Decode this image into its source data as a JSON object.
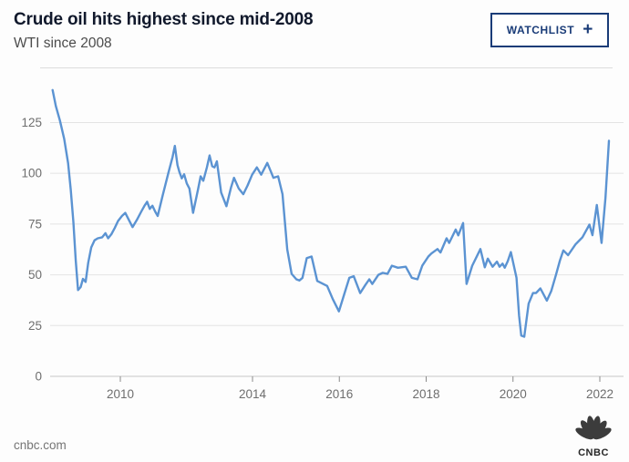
{
  "header": {
    "title": "Crude oil hits highest since mid-2008",
    "subtitle": "WTI since 2008",
    "watchlist_button": {
      "label": "WATCHLIST",
      "icon": "plus",
      "icon_glyph": "+"
    }
  },
  "chart_data": {
    "type": "line",
    "title": "Crude oil hits highest since mid-2008",
    "subtitle": "WTI since 2008",
    "xlabel": "",
    "ylabel": "",
    "xlim": [
      2007.95,
      2022.3
    ],
    "ylim": [
      0,
      145
    ],
    "grid": true,
    "legend": "none",
    "x_ticks": [
      2010,
      2014,
      2016,
      2018,
      2020,
      2022
    ],
    "y_ticks": [
      0,
      25,
      50,
      75,
      100,
      125
    ],
    "line_color": "#5b93d2",
    "grid_color": "#e4e4e4",
    "axis_color": "#c6c6c6",
    "tick_color": "#8a8a8a",
    "tick_label_color": "#6e6e6e",
    "series": [
      {
        "name": "WTI",
        "points": [
          [
            2007.95,
            141
          ],
          [
            2008.05,
            133
          ],
          [
            2008.17,
            126
          ],
          [
            2008.3,
            117
          ],
          [
            2008.42,
            105
          ],
          [
            2008.5,
            92
          ],
          [
            2008.58,
            76
          ],
          [
            2008.65,
            57
          ],
          [
            2008.72,
            42.5
          ],
          [
            2008.8,
            44
          ],
          [
            2008.87,
            48
          ],
          [
            2008.95,
            46.5
          ],
          [
            2009.03,
            56
          ],
          [
            2009.12,
            63.5
          ],
          [
            2009.22,
            67
          ],
          [
            2009.32,
            68
          ],
          [
            2009.45,
            68.5
          ],
          [
            2009.55,
            70.5
          ],
          [
            2009.63,
            68
          ],
          [
            2009.73,
            70
          ],
          [
            2009.83,
            73
          ],
          [
            2009.93,
            76.5
          ],
          [
            2010.05,
            79
          ],
          [
            2010.15,
            80.5
          ],
          [
            2010.26,
            77
          ],
          [
            2010.37,
            73.5
          ],
          [
            2010.5,
            77
          ],
          [
            2010.63,
            81
          ],
          [
            2010.73,
            84
          ],
          [
            2010.81,
            86
          ],
          [
            2010.89,
            82.5
          ],
          [
            2010.97,
            84
          ],
          [
            2011.06,
            81
          ],
          [
            2011.13,
            79
          ],
          [
            2011.28,
            89
          ],
          [
            2011.45,
            100
          ],
          [
            2011.58,
            108
          ],
          [
            2011.65,
            113.5
          ],
          [
            2011.73,
            104
          ],
          [
            2011.79,
            100.5
          ],
          [
            2011.86,
            97.5
          ],
          [
            2011.93,
            99.5
          ],
          [
            2012.01,
            95
          ],
          [
            2012.09,
            92.5
          ],
          [
            2012.2,
            80.5
          ],
          [
            2012.35,
            92
          ],
          [
            2012.43,
            98.5
          ],
          [
            2012.51,
            96.3
          ],
          [
            2012.62,
            103
          ],
          [
            2012.7,
            108.8
          ],
          [
            2012.78,
            103.5
          ],
          [
            2012.85,
            102.9
          ],
          [
            2012.92,
            105.9
          ],
          [
            2013.05,
            90.5
          ],
          [
            2013.21,
            83.8
          ],
          [
            2013.35,
            93
          ],
          [
            2013.44,
            97.8
          ],
          [
            2013.58,
            92.6
          ],
          [
            2013.72,
            89.7
          ],
          [
            2013.85,
            94
          ],
          [
            2013.99,
            99.3
          ],
          [
            2014.1,
            102.9
          ],
          [
            2014.2,
            99.3
          ],
          [
            2014.34,
            105.1
          ],
          [
            2014.42,
            101
          ],
          [
            2014.48,
            97.8
          ],
          [
            2014.59,
            98.5
          ],
          [
            2014.69,
            89.7
          ],
          [
            2014.8,
            62.5
          ],
          [
            2014.9,
            50.5
          ],
          [
            2015.01,
            47.8
          ],
          [
            2015.08,
            47.2
          ],
          [
            2015.15,
            48.5
          ],
          [
            2015.25,
            58.2
          ],
          [
            2015.36,
            59
          ],
          [
            2015.49,
            47
          ],
          [
            2015.6,
            45.8
          ],
          [
            2015.72,
            44.5
          ],
          [
            2015.85,
            38
          ],
          [
            2015.99,
            32
          ],
          [
            2016.12,
            41
          ],
          [
            2016.23,
            48.5
          ],
          [
            2016.33,
            49.3
          ],
          [
            2016.48,
            41
          ],
          [
            2016.6,
            45
          ],
          [
            2016.69,
            47.8
          ],
          [
            2016.76,
            45.5
          ],
          [
            2016.9,
            50
          ],
          [
            2017.0,
            51
          ],
          [
            2017.11,
            50.5
          ],
          [
            2017.21,
            54.5
          ],
          [
            2017.35,
            53.5
          ],
          [
            2017.53,
            54
          ],
          [
            2017.67,
            48.5
          ],
          [
            2017.8,
            47.8
          ],
          [
            2017.91,
            54.5
          ],
          [
            2018.05,
            59
          ],
          [
            2018.12,
            60.5
          ],
          [
            2018.26,
            62.7
          ],
          [
            2018.33,
            61
          ],
          [
            2018.47,
            68
          ],
          [
            2018.53,
            65.7
          ],
          [
            2018.68,
            72.3
          ],
          [
            2018.74,
            69.4
          ],
          [
            2018.85,
            75.5
          ],
          [
            2018.93,
            45.5
          ],
          [
            2019.06,
            54.5
          ],
          [
            2019.25,
            62.7
          ],
          [
            2019.35,
            53.7
          ],
          [
            2019.42,
            58
          ],
          [
            2019.53,
            54
          ],
          [
            2019.63,
            56.5
          ],
          [
            2019.69,
            54
          ],
          [
            2019.76,
            55.5
          ],
          [
            2019.81,
            53.5
          ],
          [
            2019.88,
            56.7
          ],
          [
            2019.95,
            61.2
          ],
          [
            2020.08,
            48.5
          ],
          [
            2020.14,
            30
          ],
          [
            2020.19,
            20.1
          ],
          [
            2020.26,
            19.5
          ],
          [
            2020.36,
            35.8
          ],
          [
            2020.46,
            41
          ],
          [
            2020.53,
            41
          ],
          [
            2020.63,
            43.3
          ],
          [
            2020.78,
            37.3
          ],
          [
            2020.88,
            42
          ],
          [
            2020.99,
            50
          ],
          [
            2021.08,
            57
          ],
          [
            2021.16,
            62
          ],
          [
            2021.27,
            59.7
          ],
          [
            2021.44,
            65
          ],
          [
            2021.6,
            68.5
          ],
          [
            2021.76,
            74.7
          ],
          [
            2021.83,
            69.5
          ],
          [
            2021.93,
            84.4
          ],
          [
            2022.04,
            65.7
          ],
          [
            2022.13,
            88
          ],
          [
            2022.21,
            116
          ]
        ]
      }
    ]
  },
  "footer": {
    "source": "cnbc.com",
    "logo_text": "CNBC"
  },
  "colors": {
    "accent_navy": "#1a3c78",
    "line_blue": "#5b93d2",
    "title_text": "#11192c"
  }
}
